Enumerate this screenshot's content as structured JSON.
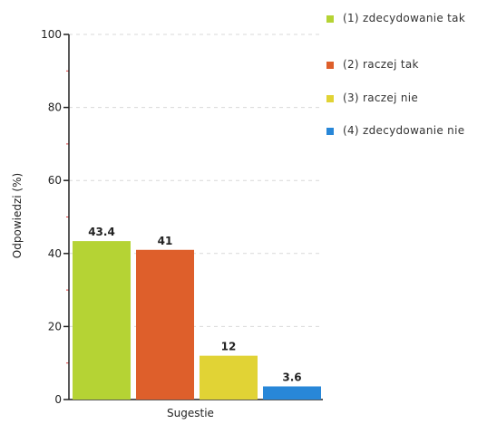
{
  "chart_data": {
    "type": "bar",
    "xlabel": "Sugestie",
    "ylabel": "Odpowiedzi (%)",
    "ylim": [
      0,
      100
    ],
    "yticks": [
      0,
      20,
      40,
      60,
      80,
      100
    ],
    "grid": true,
    "legend_position": "right",
    "series": [
      {
        "name": "(1) zdecydowanie tak",
        "value": 43.4,
        "value_label": "43.4",
        "color": "#b5d334"
      },
      {
        "name": "(2) raczej tak",
        "value": 41,
        "value_label": "41",
        "color": "#de5f2b"
      },
      {
        "name": "(3) raczej nie",
        "value": 12,
        "value_label": "12",
        "color": "#e1d335"
      },
      {
        "name": "(4) zdecydowanie nie",
        "value": 3.6,
        "value_label": "3.6",
        "color": "#2887d8"
      }
    ]
  }
}
